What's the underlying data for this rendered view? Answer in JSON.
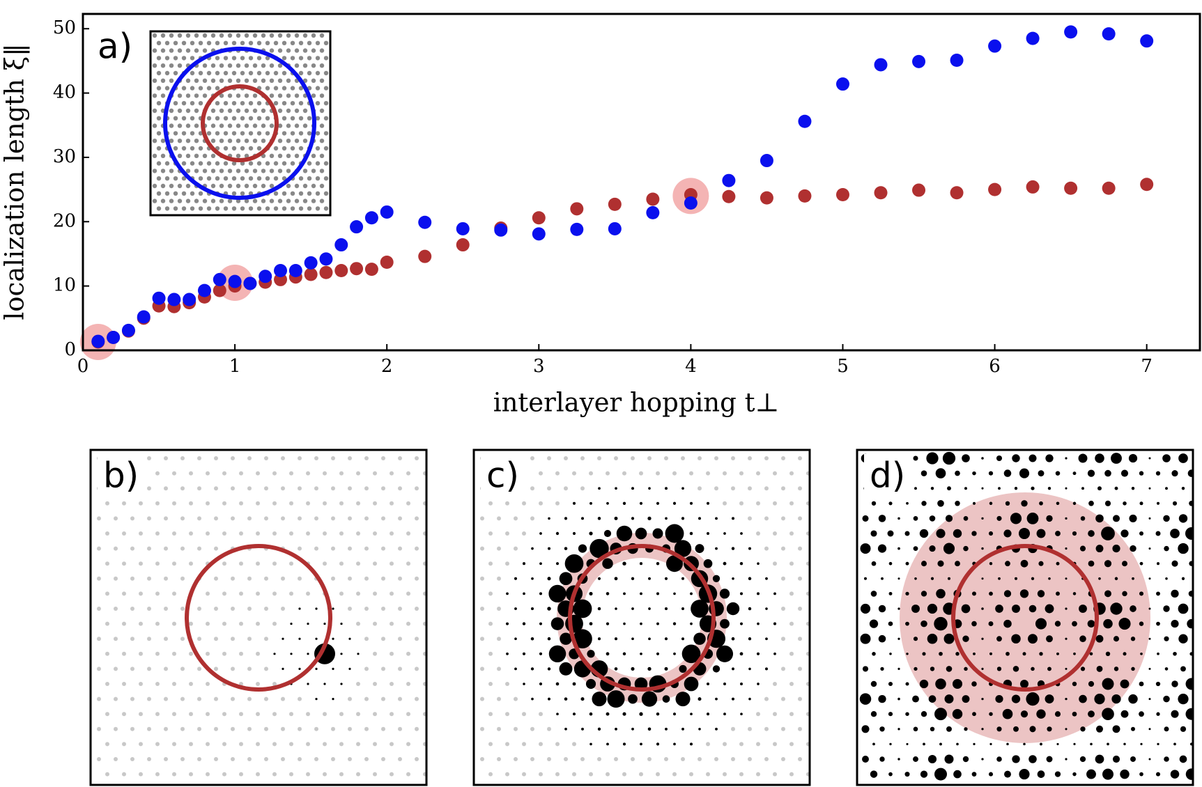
{
  "chart_data": {
    "type": "scatter",
    "x_label": "interlayer hopping t⊥",
    "y_label": "localization length ξ‖",
    "panel_labels": [
      "a)",
      "b)",
      "c)",
      "d)"
    ],
    "x": [
      0.1,
      0.2,
      0.3,
      0.4,
      0.5,
      0.6,
      0.7,
      0.8,
      0.9,
      1.0,
      1.1,
      1.2,
      1.3,
      1.4,
      1.5,
      1.6,
      1.7,
      1.8,
      1.9,
      2.0,
      2.25,
      2.5,
      2.75,
      3.0,
      3.25,
      3.5,
      3.75,
      4.0,
      4.25,
      4.5,
      4.75,
      5.0,
      5.25,
      5.5,
      5.75,
      6.0,
      6.25,
      6.5,
      6.75,
      7.0
    ],
    "series": [
      {
        "color": "#b03030",
        "values": [
          1.3,
          2.0,
          3.0,
          5.0,
          6.9,
          6.8,
          7.4,
          8.3,
          9.3,
          10.0,
          10.4,
          10.6,
          11.0,
          11.4,
          11.8,
          12.1,
          12.4,
          12.7,
          12.6,
          13.7,
          14.6,
          16.4,
          19.0,
          20.6,
          22.0,
          22.7,
          23.5,
          24.2,
          23.9,
          23.7,
          24.0,
          24.2,
          24.5,
          24.9,
          24.5,
          25.0,
          25.4,
          25.2,
          25.2,
          25.8
        ]
      },
      {
        "color": "#0a10ee",
        "values": [
          1.4,
          2.0,
          3.1,
          5.2,
          8.1,
          7.9,
          7.9,
          9.3,
          11.0,
          10.7,
          10.4,
          11.5,
          12.4,
          12.4,
          13.6,
          14.2,
          16.4,
          19.2,
          20.6,
          21.5,
          19.9,
          18.9,
          18.7,
          18.1,
          18.8,
          18.9,
          21.4,
          22.9,
          26.4,
          29.5,
          35.6,
          41.4,
          44.4,
          44.9,
          45.1,
          47.3,
          48.5,
          49.5,
          49.2,
          48.1
        ]
      }
    ],
    "highlights": {
      "color": "#f4b4b4",
      "x": [
        0.1,
        1.0,
        4.0
      ],
      "y": [
        1.3,
        10.5,
        24.0
      ]
    },
    "xlim": [
      0,
      7.35
    ],
    "ylim": [
      0,
      52.3
    ],
    "xticks": [
      0,
      1,
      2,
      3,
      4,
      5,
      6,
      7
    ],
    "yticks": [
      0,
      10,
      20,
      30,
      40,
      50
    ]
  }
}
